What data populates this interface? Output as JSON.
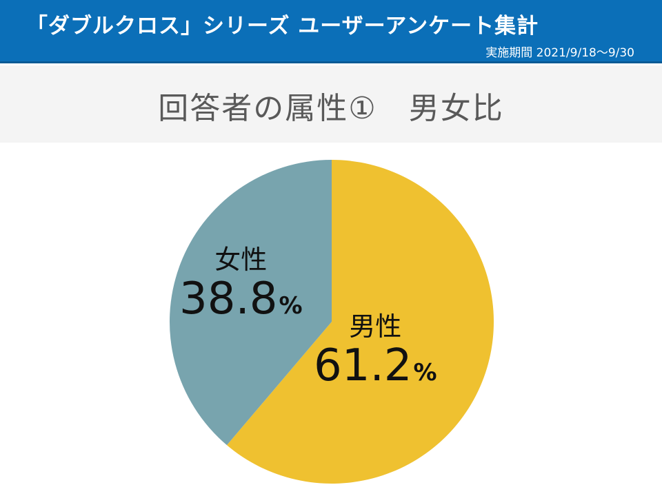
{
  "header": {
    "title": "「ダブルクロス」シリーズ ユーザーアンケート集計",
    "period": "実施期間 2021/9/18〜9/30"
  },
  "slide": {
    "title": "回答者の属性①　男女比"
  },
  "colors": {
    "header_bg": "#0b6fb8",
    "male": "#efc130",
    "female": "#78a4ae"
  },
  "chart_data": {
    "type": "pie",
    "title": "",
    "start": "12 o'clock, clockwise",
    "slices": [
      {
        "label": "男性",
        "value": 61.2,
        "display": "61.2",
        "unit": "%",
        "color": "#efc130"
      },
      {
        "label": "女性",
        "value": 38.8,
        "display": "38.8",
        "unit": "%",
        "color": "#78a4ae"
      }
    ]
  }
}
